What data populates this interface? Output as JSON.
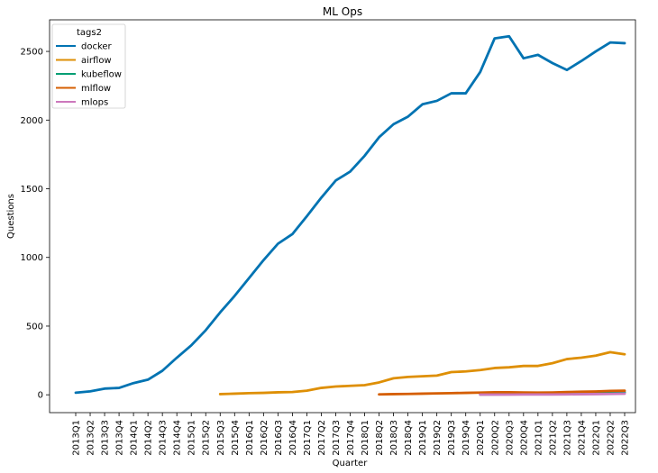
{
  "chart_data": {
    "type": "line",
    "title": "ML Ops",
    "xlabel": "Quarter",
    "ylabel": "Questions",
    "ylim": [
      -130,
      2730
    ],
    "yticks": [
      0,
      500,
      1000,
      1500,
      2000,
      2500
    ],
    "grid": false,
    "legend": {
      "title": "tags2",
      "placement": "top-left"
    },
    "categories": [
      "2013Q1",
      "2013Q2",
      "2013Q3",
      "2013Q4",
      "2014Q1",
      "2014Q2",
      "2014Q3",
      "2014Q4",
      "2015Q1",
      "2015Q2",
      "2015Q3",
      "2015Q4",
      "2016Q1",
      "2016Q2",
      "2016Q3",
      "2016Q4",
      "2017Q1",
      "2017Q2",
      "2017Q3",
      "2017Q4",
      "2018Q1",
      "2018Q2",
      "2018Q3",
      "2018Q4",
      "2019Q1",
      "2019Q2",
      "2019Q3",
      "2019Q4",
      "2020Q1",
      "2020Q2",
      "2020Q3",
      "2020Q4",
      "2021Q1",
      "2021Q2",
      "2021Q3",
      "2021Q4",
      "2022Q1",
      "2022Q2",
      "2022Q3"
    ],
    "series": [
      {
        "name": "docker",
        "color": "#0173b2",
        "values": [
          15,
          25,
          45,
          50,
          85,
          110,
          175,
          270,
          360,
          470,
          600,
          720,
          850,
          980,
          1100,
          1170,
          1300,
          1435,
          1560,
          1625,
          1740,
          1875,
          1970,
          2025,
          2115,
          2140,
          2195,
          2195,
          2350,
          2595,
          2610,
          2450,
          2475,
          2415,
          2365,
          2430,
          2500,
          2565,
          2560
        ]
      },
      {
        "name": "airflow",
        "color": "#de8f05",
        "values": [
          null,
          null,
          null,
          null,
          null,
          null,
          null,
          null,
          null,
          null,
          5,
          8,
          12,
          14,
          18,
          20,
          30,
          50,
          60,
          65,
          70,
          90,
          120,
          130,
          135,
          140,
          165,
          170,
          180,
          195,
          200,
          210,
          210,
          230,
          260,
          270,
          285,
          310,
          295
        ]
      },
      {
        "name": "kubeflow",
        "color": "#029e73",
        "values": [
          null,
          null,
          null,
          null,
          null,
          null,
          null,
          null,
          null,
          null,
          null,
          null,
          null,
          null,
          null,
          null,
          null,
          null,
          null,
          null,
          null,
          null,
          null,
          null,
          null,
          null,
          null,
          null,
          2,
          3,
          4,
          5,
          5,
          6,
          8,
          10,
          12,
          15,
          18
        ]
      },
      {
        "name": "mlflow",
        "color": "#d55e00",
        "values": [
          null,
          null,
          null,
          null,
          null,
          null,
          null,
          null,
          null,
          null,
          null,
          null,
          null,
          null,
          null,
          null,
          null,
          null,
          null,
          null,
          null,
          3,
          5,
          6,
          8,
          10,
          12,
          14,
          16,
          18,
          18,
          17,
          16,
          17,
          20,
          22,
          24,
          28,
          30
        ]
      },
      {
        "name": "mlops",
        "color": "#cc78bc",
        "values": [
          null,
          null,
          null,
          null,
          null,
          null,
          null,
          null,
          null,
          null,
          null,
          null,
          null,
          null,
          null,
          null,
          null,
          null,
          null,
          null,
          null,
          null,
          null,
          null,
          null,
          null,
          null,
          null,
          1,
          1,
          1,
          2,
          2,
          2,
          3,
          4,
          5,
          6,
          8
        ]
      }
    ]
  }
}
